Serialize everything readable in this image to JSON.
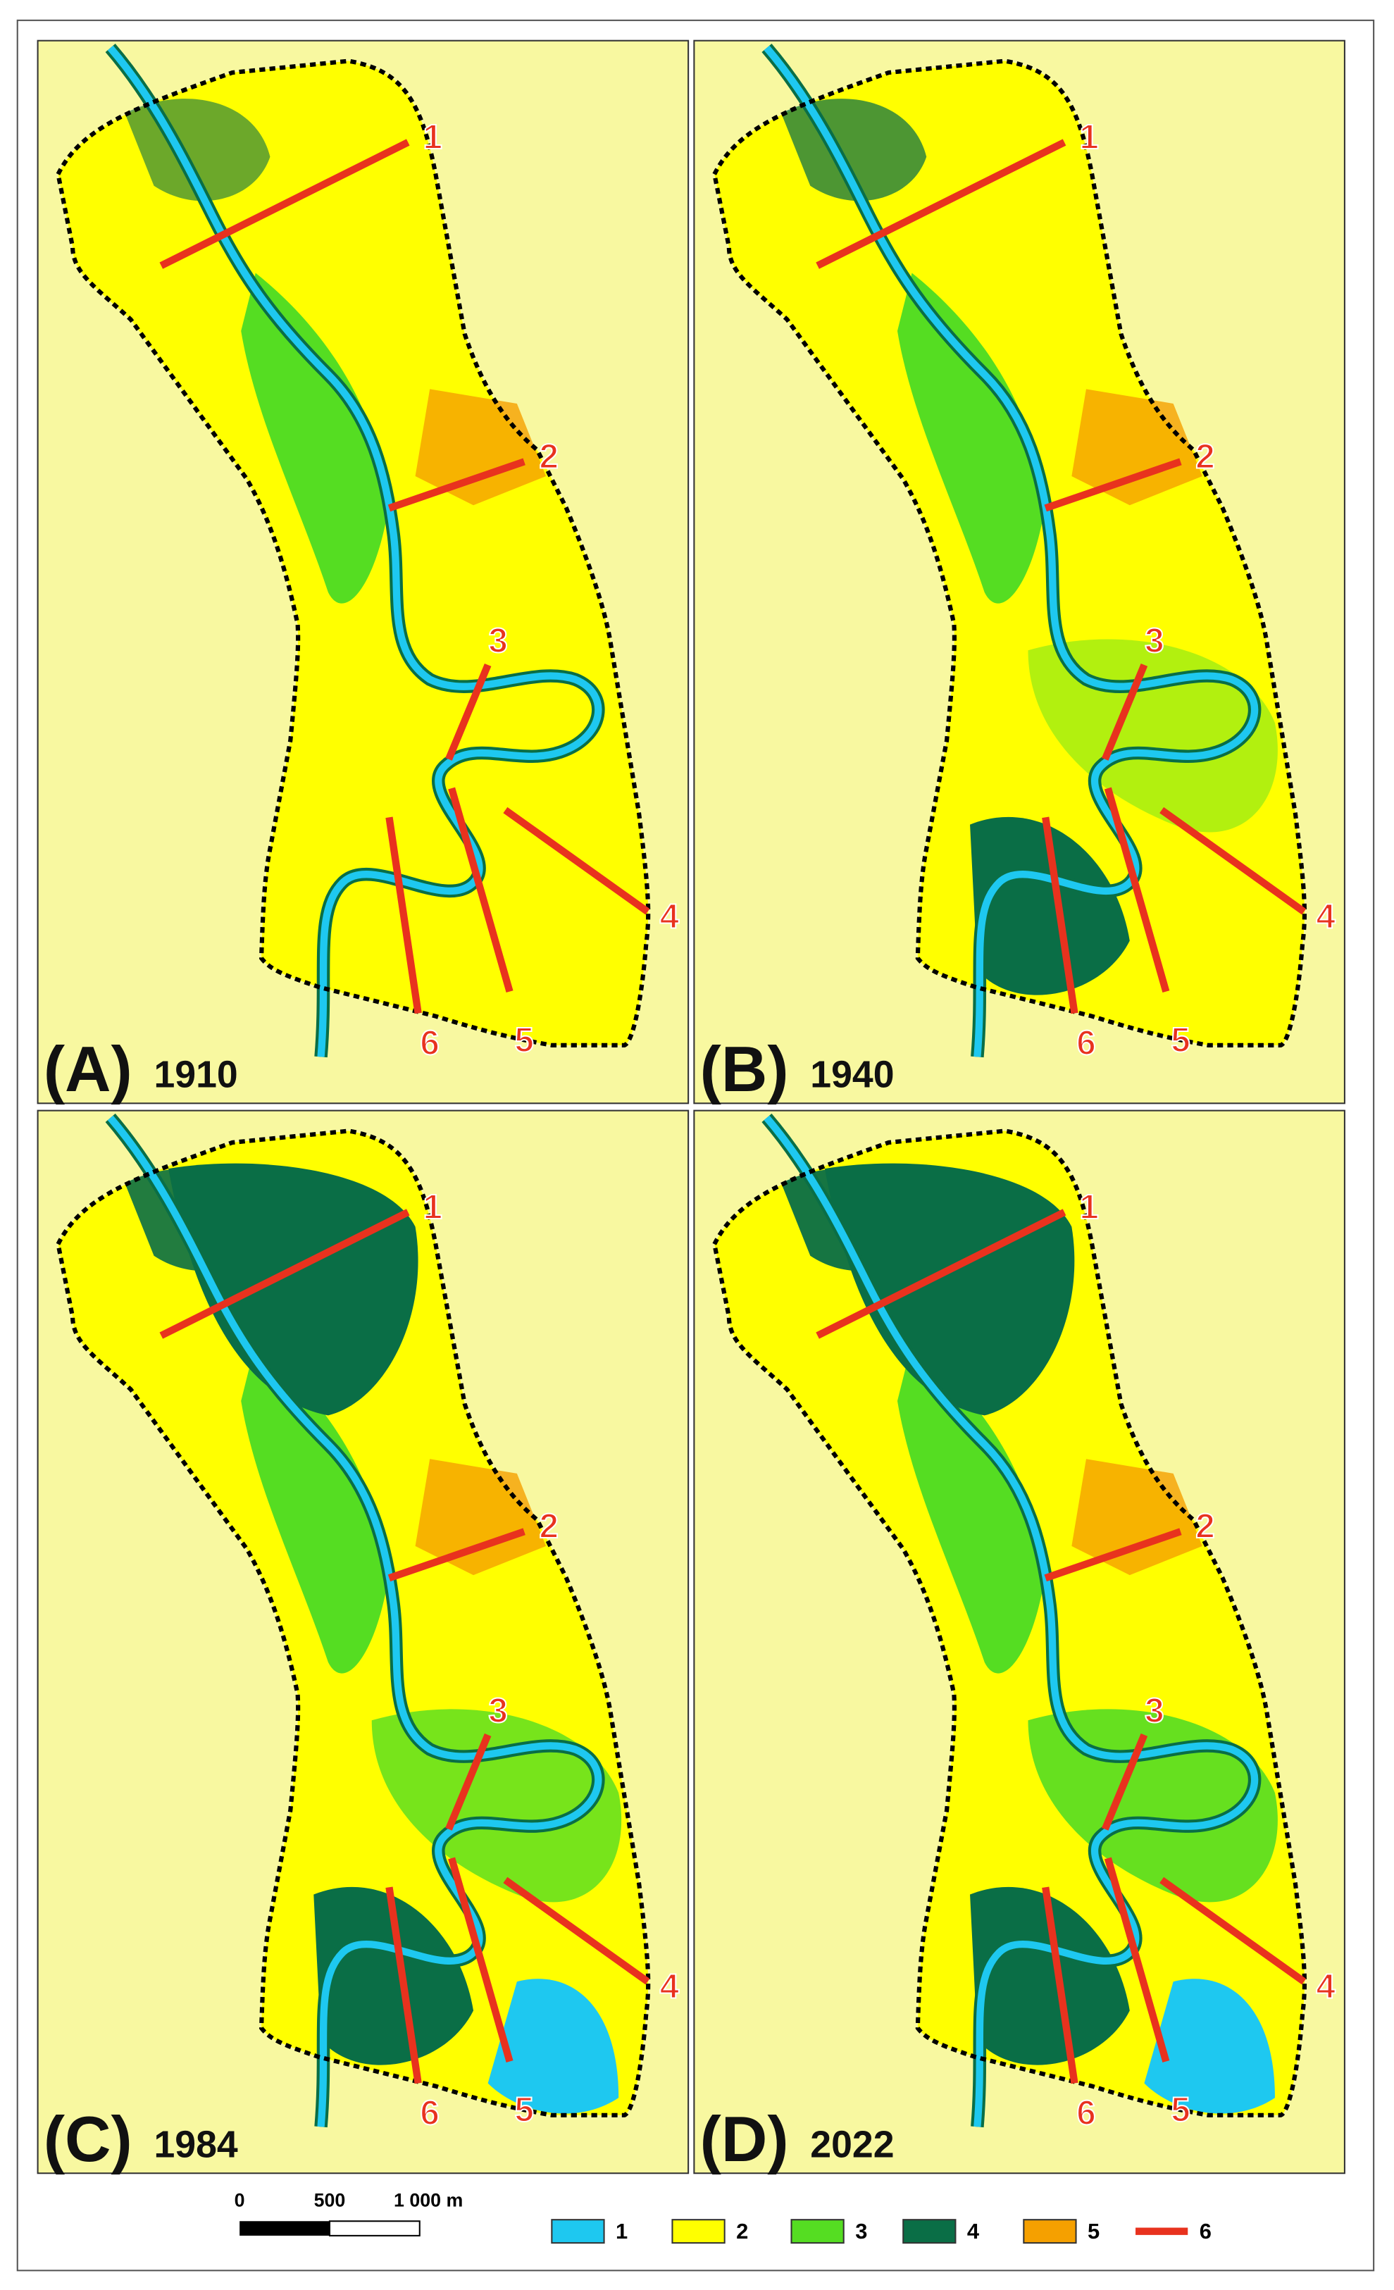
{
  "panels": [
    {
      "label": "(A)",
      "year": "1910"
    },
    {
      "label": "(B)",
      "year": "1940"
    },
    {
      "label": "(C)",
      "year": "1984"
    },
    {
      "label": "(D)",
      "year": "2022"
    }
  ],
  "transect_labels": [
    "1",
    "2",
    "3",
    "4",
    "5",
    "6"
  ],
  "scale_bar": {
    "labels": [
      "0",
      "500",
      "1 000 m"
    ]
  },
  "legend": [
    {
      "label": "1",
      "color": "#1ec8f0"
    },
    {
      "label": "2",
      "color": "#ffff00"
    },
    {
      "label": "3",
      "color": "#55dd22"
    },
    {
      "label": "4",
      "color": "#0a6e46"
    },
    {
      "label": "5",
      "color": "#f5a000"
    },
    {
      "label": "6",
      "color": "#e8321e"
    }
  ]
}
